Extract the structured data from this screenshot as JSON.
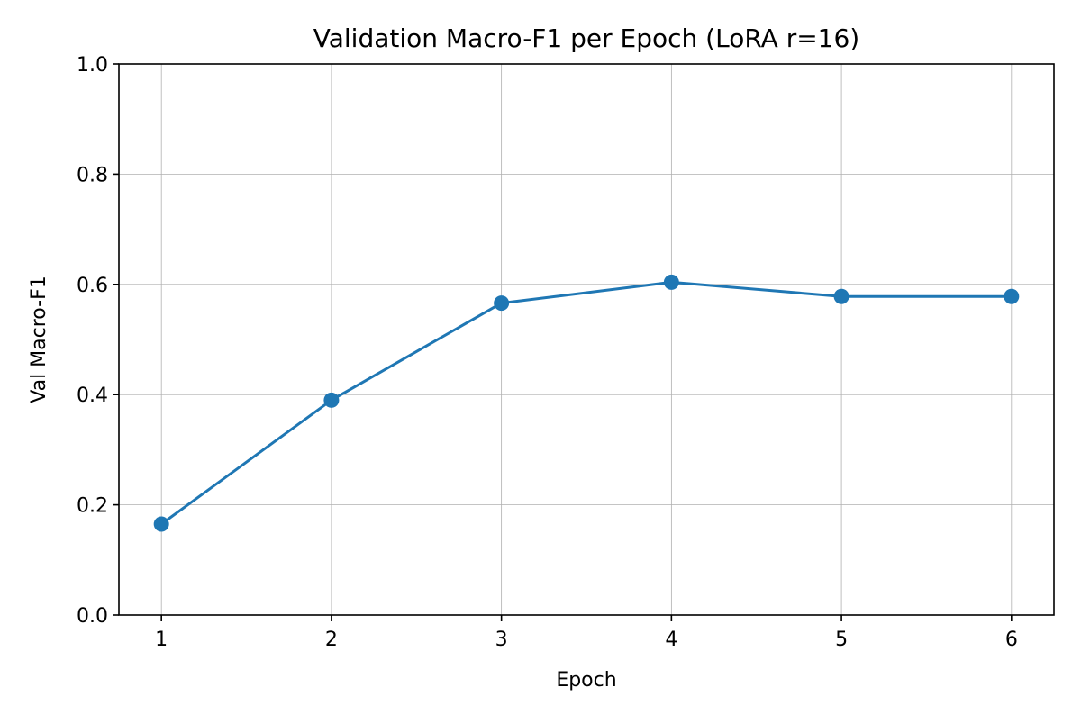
{
  "chart_data": {
    "type": "line",
    "title": "Validation Macro-F1 per Epoch (LoRA r=16)",
    "xlabel": "Epoch",
    "ylabel": "Val Macro-F1",
    "x": [
      1,
      2,
      3,
      4,
      5,
      6
    ],
    "series": [
      {
        "values": [
          0.165,
          0.39,
          0.566,
          0.604,
          0.578,
          0.578
        ]
      }
    ],
    "xticks": [
      "1",
      "2",
      "3",
      "4",
      "5",
      "6"
    ],
    "yticks": [
      "0.0",
      "0.2",
      "0.4",
      "0.6",
      "0.8",
      "1.0"
    ],
    "xlim": [
      0.75,
      6.25
    ],
    "ylim": [
      0.0,
      1.0
    ],
    "grid": true,
    "legend": "none",
    "line_color": "#1f77b4",
    "marker": "circle"
  }
}
